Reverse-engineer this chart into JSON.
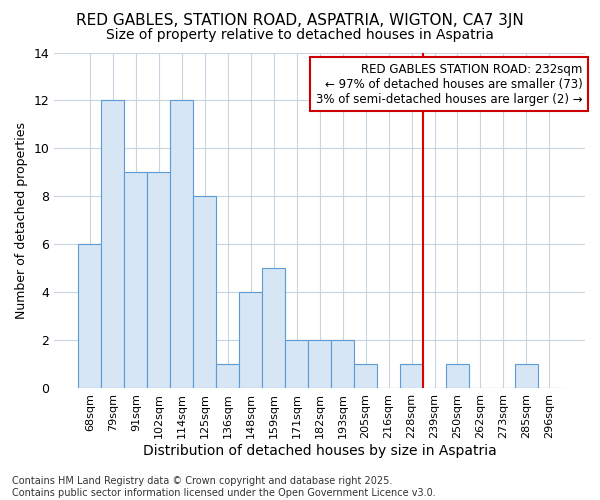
{
  "title": "RED GABLES, STATION ROAD, ASPATRIA, WIGTON, CA7 3JN",
  "subtitle": "Size of property relative to detached houses in Aspatria",
  "xlabel": "Distribution of detached houses by size in Aspatria",
  "ylabel": "Number of detached properties",
  "categories": [
    "68sqm",
    "79sqm",
    "91sqm",
    "102sqm",
    "114sqm",
    "125sqm",
    "136sqm",
    "148sqm",
    "159sqm",
    "171sqm",
    "182sqm",
    "193sqm",
    "205sqm",
    "216sqm",
    "228sqm",
    "239sqm",
    "250sqm",
    "262sqm",
    "273sqm",
    "285sqm",
    "296sqm"
  ],
  "values": [
    6,
    12,
    9,
    9,
    12,
    8,
    1,
    4,
    5,
    2,
    2,
    2,
    1,
    0,
    1,
    0,
    1,
    0,
    0,
    1,
    0
  ],
  "bar_color": "#d6e6f5",
  "bar_edgecolor": "#5b9bd5",
  "highlight_index": 14,
  "red_line_color": "#dd0000",
  "annotation_text": "RED GABLES STATION ROAD: 232sqm\n← 97% of detached houses are smaller (73)\n3% of semi-detached houses are larger (2) →",
  "annotation_box_color": "#ffffff",
  "annotation_box_edgecolor": "#cc0000",
  "footer": "Contains HM Land Registry data © Crown copyright and database right 2025.\nContains public sector information licensed under the Open Government Licence v3.0.",
  "ylim": [
    0,
    14
  ],
  "yticks": [
    0,
    2,
    4,
    6,
    8,
    10,
    12,
    14
  ],
  "background_color": "#ffffff",
  "plot_background_color": "#ffffff",
  "grid_color": "#c8d4e0",
  "title_fontsize": 11,
  "subtitle_fontsize": 10,
  "tick_fontsize": 8,
  "ylabel_fontsize": 9,
  "xlabel_fontsize": 10,
  "annotation_fontsize": 8.5,
  "footer_fontsize": 7
}
